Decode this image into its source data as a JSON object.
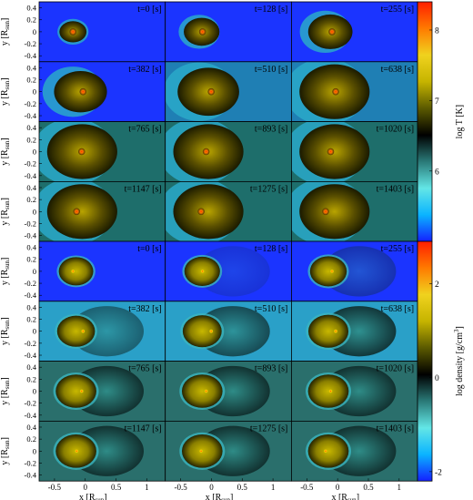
{
  "chart_data": [
    {
      "type": "heatmap",
      "quantity": "temperature",
      "colorbar": {
        "label": "log T [K]",
        "range": [
          5.0,
          8.4
        ],
        "ticks": [
          "6",
          "7",
          "8"
        ],
        "tick_values": [
          6,
          7,
          8
        ],
        "colors": [
          "#1420ff",
          "#0ab4ff",
          "#63e6e6",
          "#2a7a78",
          "#000000",
          "#5b5a00",
          "#c6b400",
          "#f0d21e",
          "#ff7a00",
          "#ff1e00"
        ]
      },
      "ylabel": "y [R",
      "ylabel_sub": "sun",
      "ylabel_tail": "]",
      "yticks": [
        "0.4",
        "0.2",
        "0",
        "-0.2",
        "-0.4"
      ],
      "ylim": [
        -0.5,
        0.5
      ],
      "xlim": [
        -0.75,
        1.3
      ],
      "panels": [
        {
          "time": "t=0 [s]",
          "t": 0
        },
        {
          "time": "t=128 [s]",
          "t": 128
        },
        {
          "time": "t=255 [s]",
          "t": 255
        },
        {
          "time": "t=382 [s]",
          "t": 382
        },
        {
          "time": "t=510 [s]",
          "t": 510
        },
        {
          "time": "t=638 [s]",
          "t": 638
        },
        {
          "time": "t=765 [s]",
          "t": 765
        },
        {
          "time": "t=893 [s]",
          "t": 893
        },
        {
          "time": "t=1020 [s]",
          "t": 1020
        },
        {
          "time": "t=1147 [s]",
          "t": 1147
        },
        {
          "time": "t=1275 [s]",
          "t": 1275
        },
        {
          "time": "t=1403 [s]",
          "t": 1403
        }
      ]
    },
    {
      "type": "heatmap",
      "quantity": "density",
      "colorbar": {
        "label": "log density [g/cm",
        "label_sup": "3",
        "label_tail": "]",
        "range": [
          -2.2,
          2.9
        ],
        "ticks": [
          "2",
          "0",
          "-2"
        ],
        "tick_values": [
          2,
          0,
          -2
        ],
        "colors": [
          "#1420ff",
          "#0ab4ff",
          "#63e6e6",
          "#2a7a78",
          "#000000",
          "#5b5a00",
          "#c6b400",
          "#f0d21e",
          "#ff7a00",
          "#ff1e00"
        ]
      },
      "ylabel": "y [R",
      "ylabel_sub": "sun",
      "ylabel_tail": "]",
      "yticks": [
        "0.4",
        "0.2",
        "0",
        "-0.2",
        "-0.4"
      ],
      "xlabel": "x [R",
      "xlabel_sub": "sun",
      "xlabel_tail": "]",
      "xticks": [
        "-0.5",
        "0",
        "0.5",
        "1"
      ],
      "xtick_values": [
        -0.5,
        0,
        0.5,
        1
      ],
      "ylim": [
        -0.5,
        0.5
      ],
      "xlim": [
        -0.75,
        1.3
      ],
      "panels": [
        {
          "time": "t=0 [s]",
          "t": 0
        },
        {
          "time": "t=128 [s]",
          "t": 128
        },
        {
          "time": "t=255 [s]",
          "t": 255
        },
        {
          "time": "t=382 [s]",
          "t": 382
        },
        {
          "time": "t=510 [s]",
          "t": 510
        },
        {
          "time": "t=638 [s]",
          "t": 638
        },
        {
          "time": "t=765 [s]",
          "t": 765
        },
        {
          "time": "t=893 [s]",
          "t": 893
        },
        {
          "time": "t=1020 [s]",
          "t": 1020
        },
        {
          "time": "t=1147 [s]",
          "t": 1147
        },
        {
          "time": "t=1275 [s]",
          "t": 1275
        },
        {
          "time": "t=1403 [s]",
          "t": 1403
        }
      ]
    }
  ]
}
